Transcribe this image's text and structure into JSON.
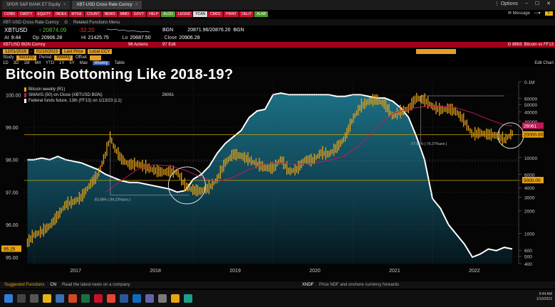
{
  "window": {
    "tabs": [
      {
        "label": "SPDR S&P BANK ET Equity",
        "active": false
      },
      {
        "label": "XBT-USD Cross Rate Curncy",
        "active": true
      }
    ],
    "options_label": "Options"
  },
  "function_keys": [
    {
      "label": "CONN",
      "color": "r"
    },
    {
      "label": "CMDTY",
      "color": "r"
    },
    {
      "label": "EQUITY",
      "color": "r"
    },
    {
      "label": "INDEX",
      "color": "r"
    },
    {
      "label": "MTGE",
      "color": "r"
    },
    {
      "label": "COUNT",
      "color": "r"
    },
    {
      "label": "NEWS",
      "color": "r"
    },
    {
      "label": "MMO",
      "color": "r"
    },
    {
      "label": "GOVT",
      "color": "r"
    },
    {
      "label": "HELP",
      "color": "r"
    },
    {
      "label": "ALOG",
      "color": "g"
    },
    {
      "label": "LEGND",
      "color": "r"
    },
    {
      "label": "YCAN",
      "color": "w"
    },
    {
      "label": "CMDC",
      "color": "r"
    },
    {
      "label": "PRINT",
      "color": "r"
    },
    {
      "label": "DELIT",
      "color": "r"
    },
    {
      "label": "ALAR",
      "color": "g"
    }
  ],
  "message_bar": {
    "message_label": "Message",
    "help_label": "?-"
  },
  "subtabs": [
    "XBT-USD Cross Rate Curncy",
    "G",
    "Related Functions Menu"
  ],
  "quote": {
    "ticker": "XBTUSD",
    "last": "20874.09",
    "change": "-32.20",
    "bid_ask_label": "BGN",
    "bid_ask": "20871.96/20876.20",
    "bid_ask_suffix": "BGN",
    "time_label": "At",
    "time": "9:44",
    "open_label": "Op",
    "open": "20906.28",
    "high_label": "Hi",
    "high": "21425.75",
    "low_label": "Lo",
    "low": "20687.50",
    "close_label": "Close",
    "close": "20906.28"
  },
  "security_bar": {
    "left": "XBTUSD BGN Curncy",
    "actions_label": "96 Actions",
    "edit_label": "97 Edit",
    "right": "G 8863: Bitcoin vs FF13"
  },
  "date_bar": {
    "start": "12/01/2016",
    "end": "01/10/2023",
    "mode": "Last Price",
    "local": "Local CCY"
  },
  "study_bar": {
    "study": "Study",
    "security": "Security",
    "period": "Period",
    "frequency": "Weekly",
    "offset": "Offset"
  },
  "period_bar": {
    "items": [
      "1D",
      "3D",
      "1M",
      "6M",
      "YTD",
      "1Y",
      "5Y",
      "Max",
      "Weekly",
      "Table"
    ],
    "selected": "Weekly",
    "edit_label": "Edit Chart"
  },
  "headline": "Bitcoin Bottoming Like 2018-19?",
  "legend": [
    {
      "label": "Bitcoin weekly  (R1)",
      "value": "",
      "color": "#e8a317"
    },
    {
      "label": "SMAVG (50)  on Close  (XBTUSD BGN)",
      "value": "26061",
      "color": "#c2185b"
    },
    {
      "label": "Federal funds future, 13th (FF13) on 1/13/23  (L1)",
      "value": "",
      "color": "#ffffff"
    }
  ],
  "chart_data": {
    "type": "line",
    "title": "Bitcoin Bottoming Like 2018-19?",
    "x_ticks": [
      "2017",
      "2018",
      "2019",
      "2020",
      "2021",
      "2022"
    ],
    "left_axis": {
      "ticks": [
        95.0,
        96.0,
        97.0,
        98.0,
        99.0,
        100.0
      ],
      "ylim": [
        94.8,
        100.4
      ]
    },
    "right_axis": {
      "scale": "log",
      "ticks": [
        "400",
        "500",
        "600",
        "1000",
        "2000",
        "3000",
        "4000",
        "5000",
        "6000",
        "10000",
        "20000",
        "30000",
        "40000",
        "50000",
        "60000",
        "0.1M"
      ],
      "ylim": [
        400,
        100000
      ]
    },
    "right_axis_tags": [
      {
        "label": "26061",
        "color": "#c2185b"
      },
      {
        "label": "20000.00",
        "color": "#e8a317"
      },
      {
        "label": "5000.00",
        "color": "#e8a317"
      }
    ],
    "left_axis_tag": {
      "label": "95.25",
      "color": "#e8a317"
    },
    "annotations": [
      "-83.58% (-84.23%ann.)",
      "-77.55% (-76.37%ann.)"
    ],
    "series": [
      {
        "name": "Federal funds future, 13th (FF13) on 1/13/23",
        "axis": "left",
        "x": [
          2016.92,
          2017.0,
          2017.1,
          2017.2,
          2017.3,
          2017.4,
          2017.5,
          2017.6,
          2017.7,
          2017.8,
          2017.9,
          2018.0,
          2018.1,
          2018.2,
          2018.3,
          2018.4,
          2018.5,
          2018.6,
          2018.7,
          2018.8,
          2018.9,
          2019.0,
          2019.1,
          2019.2,
          2019.3,
          2019.4,
          2019.5,
          2019.6,
          2019.7,
          2019.8,
          2019.9,
          2020.0,
          2020.1,
          2020.2,
          2020.3,
          2020.4,
          2020.5,
          2020.6,
          2020.7,
          2020.8,
          2020.9,
          2021.0,
          2021.1,
          2021.2,
          2021.3,
          2021.4,
          2021.5,
          2021.6,
          2021.7,
          2021.8,
          2021.9,
          2022.0,
          2022.1,
          2022.2,
          2022.3,
          2022.4,
          2022.5,
          2022.6,
          2022.7,
          2022.8,
          2022.9,
          2023.0
        ],
        "values": [
          98.0,
          98.0,
          98.05,
          98.0,
          98.1,
          98.0,
          97.95,
          97.9,
          97.8,
          97.7,
          97.55,
          97.45,
          97.35,
          97.3,
          97.3,
          97.25,
          97.2,
          97.15,
          97.1,
          97.0,
          97.05,
          97.4,
          97.55,
          97.8,
          98.2,
          98.5,
          98.7,
          98.9,
          99.3,
          99.5,
          99.55,
          100.0,
          100.05,
          100.0,
          100.0,
          100.0,
          100.0,
          100.0,
          100.0,
          99.95,
          99.95,
          100.0,
          100.0,
          99.95,
          99.9,
          99.9,
          99.8,
          99.6,
          99.3,
          98.7,
          98.0,
          96.8,
          96.5,
          96.0,
          95.7,
          95.4,
          95.0,
          95.1,
          95.25,
          95.2,
          95.3,
          95.25
        ]
      },
      {
        "name": "Bitcoin weekly",
        "axis": "right",
        "x": [
          2016.92,
          2017.0,
          2017.1,
          2017.2,
          2017.3,
          2017.4,
          2017.5,
          2017.6,
          2017.7,
          2017.8,
          2017.9,
          2017.96,
          2018.0,
          2018.1,
          2018.2,
          2018.3,
          2018.4,
          2018.5,
          2018.6,
          2018.7,
          2018.8,
          2018.9,
          2019.0,
          2019.1,
          2019.2,
          2019.3,
          2019.4,
          2019.5,
          2019.6,
          2019.7,
          2019.8,
          2019.9,
          2020.0,
          2020.1,
          2020.2,
          2020.3,
          2020.4,
          2020.5,
          2020.6,
          2020.7,
          2020.8,
          2020.9,
          2021.0,
          2021.1,
          2021.2,
          2021.3,
          2021.4,
          2021.5,
          2021.6,
          2021.7,
          2021.8,
          2021.9,
          2022.0,
          2022.1,
          2022.2,
          2022.3,
          2022.4,
          2022.5,
          2022.6,
          2022.7,
          2022.8,
          2022.9,
          2023.0
        ],
        "values": [
          750,
          950,
          1050,
          1250,
          1700,
          2400,
          2600,
          3000,
          4300,
          5800,
          11000,
          19000,
          14000,
          9500,
          8000,
          8200,
          7500,
          6800,
          6400,
          6500,
          6400,
          4200,
          3700,
          3600,
          4000,
          5200,
          8500,
          11000,
          10500,
          9300,
          8200,
          7300,
          7200,
          9500,
          6500,
          7000,
          9300,
          9100,
          11500,
          11000,
          13500,
          18000,
          32000,
          47000,
          55000,
          58000,
          50000,
          35000,
          40000,
          44000,
          61000,
          57000,
          47000,
          42000,
          44000,
          40000,
          30000,
          20000,
          21000,
          20000,
          19500,
          17000,
          20874
        ]
      },
      {
        "name": "SMAVG (50) on Close (XBTUSD BGN)",
        "axis": "right",
        "x": [
          2017.9,
          2018.1,
          2018.3,
          2018.5,
          2018.7,
          2018.9,
          2019.1,
          2019.3,
          2019.5,
          2019.7,
          2019.9,
          2020.1,
          2020.3,
          2020.5,
          2020.7,
          2020.9,
          2021.1,
          2021.3,
          2021.5,
          2021.7,
          2021.9,
          2022.1,
          2022.3,
          2022.5,
          2022.7,
          2022.9,
          2023.0
        ],
        "values": [
          3500,
          5000,
          7000,
          8000,
          7800,
          6800,
          5500,
          4800,
          5500,
          7000,
          8300,
          8500,
          8200,
          8300,
          9200,
          10500,
          15000,
          25000,
          38000,
          44000,
          47000,
          48000,
          45000,
          39000,
          32000,
          27000,
          26061
        ]
      }
    ]
  },
  "footer": {
    "left_label": "Suggested Functions",
    "news_code": "CN",
    "news_text": "Read the latest news on a company",
    "right_code": "XNDF",
    "right_text": "Price NDF and onshore currency forwards"
  },
  "taskbar": {
    "time": "9:44 AM",
    "date": "1/10/2023"
  }
}
